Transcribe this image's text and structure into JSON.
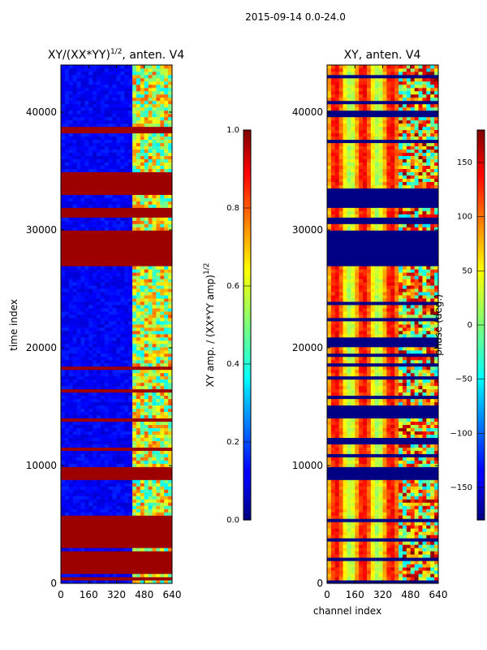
{
  "figure": {
    "suptitle": "2015-09-14 0.0-24.0"
  },
  "chart_data": [
    {
      "type": "heatmap",
      "title_main": "XY/(XX*YY)",
      "title_sup": "1/2",
      "title_rest": ", anten. V4",
      "xlabel": "",
      "ylabel": "time index",
      "xlim": [
        0,
        640
      ],
      "ylim": [
        0,
        44000
      ],
      "xticks": [
        0,
        160,
        320,
        480,
        640
      ],
      "yticks": [
        0,
        10000,
        20000,
        30000,
        40000
      ],
      "colorbar": {
        "label": "XY amp. / (XX*YY amp)",
        "label_sup": "1/2",
        "range": [
          0.0,
          1.0
        ],
        "ticks": [
          "0.0",
          "0.2",
          "0.4",
          "0.6",
          "0.8",
          "1.0"
        ],
        "colormap": "jet"
      },
      "description_values": {
        "background_level": 0.1,
        "bright_channel_band": [
          420,
          640
        ],
        "saturated_time_bands": [
          [
            27000,
            30000
          ],
          [
            33000,
            35000
          ],
          [
            31000,
            32000
          ],
          [
            8800,
            9800
          ],
          [
            1000,
            2500
          ],
          [
            3000,
            5500
          ]
        ]
      }
    },
    {
      "type": "heatmap",
      "title_main": "XY, anten. V4",
      "xlabel": "channel index",
      "ylabel": "",
      "xlim": [
        0,
        640
      ],
      "ylim": [
        0,
        44000
      ],
      "xticks": [
        0,
        160,
        320,
        480,
        640
      ],
      "yticks": [
        0,
        10000,
        20000,
        30000,
        40000
      ],
      "colorbar": {
        "label": "phase (deg.)",
        "range": [
          -180,
          180
        ],
        "ticks": [
          "150",
          "100",
          "50",
          "0",
          "−50",
          "−100",
          "−150"
        ],
        "colormap": "jet"
      },
      "description_values": {
        "dominant_phase": 90,
        "low_phase_time_bands": [
          [
            27000,
            30000
          ],
          [
            32000,
            33500
          ],
          [
            14000,
            15000
          ],
          [
            9000,
            10000
          ]
        ]
      }
    }
  ],
  "colors": {
    "jet_dark_blue": "#00007f",
    "jet_blue": "#0000ff",
    "jet_cyan": "#00ffff",
    "jet_yellow": "#ffff00",
    "jet_red": "#ff0000",
    "jet_dark_red": "#7f0000"
  }
}
